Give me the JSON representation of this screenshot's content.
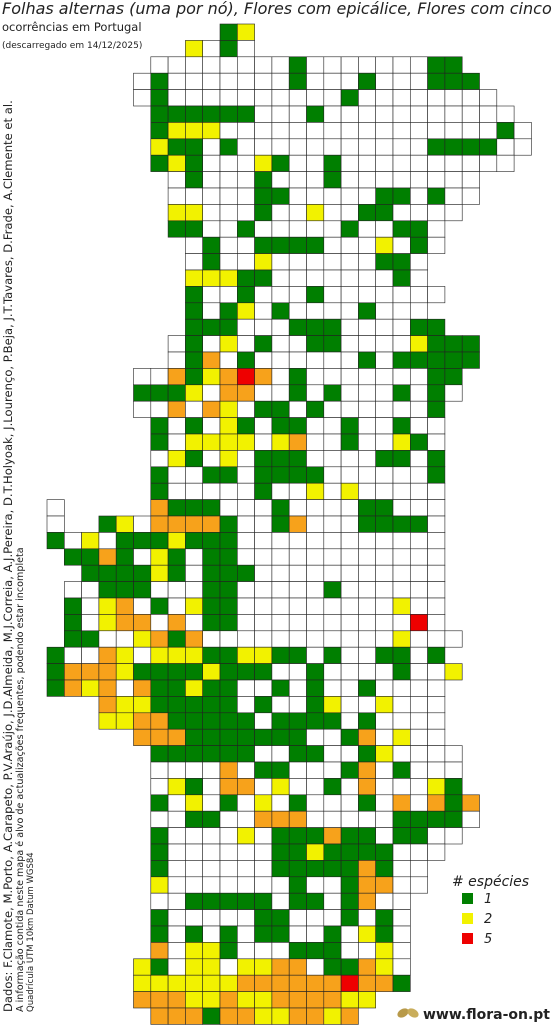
{
  "header": {
    "title": "Folhas alternas (uma por nó), Flores com epicálice, Flores com cinco p",
    "subtitle": "ocorrências em Portugal",
    "downloaded": "(descarregado em 14/12/2025)"
  },
  "side_notes": {
    "credits": "Dados: F.Clamote, M.Porto, A.Carapeto, P.V.Araújo, J.D.Almeida, M.J.Correia, A.J.Pereira, D.T.Holyoak, J.Lourenço, P.Beja, J.T.Tavares, D.Frade, A.Clemente et al.",
    "disclaimer": "A informação contida neste mapa é alvo de actualizações frequentes, podendo estar incompleta",
    "grid_info": "Quadrícula UTM 10km Datum WGS84"
  },
  "legend": {
    "title": "# espécies",
    "items": [
      {
        "value": 1,
        "color": "#007f00"
      },
      {
        "value": 2,
        "color": "#f2f200"
      },
      {
        "value": 5,
        "color": "#ee0000"
      }
    ]
  },
  "unlisted_classes": [
    {
      "value": 3,
      "color": "#f7a21b"
    }
  ],
  "logo": {
    "text": "www.flora-on.pt"
  },
  "grid": {
    "rows": [
      [
        null,
        null,
        null,
        null,
        null,
        null,
        null,
        null,
        null,
        null,
        1,
        2
      ],
      [
        null,
        null,
        null,
        null,
        null,
        null,
        null,
        null,
        2,
        0,
        1,
        0
      ],
      [
        null,
        null,
        null,
        null,
        null,
        null,
        0,
        0,
        0,
        0,
        0,
        0,
        0,
        0,
        1,
        0,
        0,
        0,
        0,
        0,
        0,
        0,
        1,
        1
      ],
      [
        null,
        null,
        null,
        null,
        null,
        0,
        1,
        0,
        0,
        0,
        0,
        0,
        0,
        0,
        1,
        0,
        0,
        0,
        1,
        0,
        0,
        0,
        1,
        1,
        1
      ],
      [
        null,
        null,
        null,
        null,
        null,
        0,
        1,
        0,
        0,
        0,
        0,
        0,
        0,
        0,
        0,
        0,
        0,
        1,
        0,
        0,
        0,
        0,
        0,
        0,
        0,
        0
      ],
      [
        null,
        null,
        null,
        null,
        null,
        null,
        1,
        1,
        1,
        1,
        1,
        1,
        0,
        0,
        0,
        1,
        0,
        0,
        0,
        0,
        0,
        0,
        0,
        0,
        0,
        0,
        0
      ],
      [
        null,
        null,
        null,
        null,
        null,
        null,
        1,
        2,
        2,
        2,
        0,
        0,
        0,
        0,
        0,
        0,
        0,
        0,
        0,
        0,
        0,
        0,
        0,
        0,
        0,
        0,
        1,
        0
      ],
      [
        null,
        null,
        null,
        null,
        null,
        null,
        2,
        1,
        1,
        0,
        1,
        0,
        0,
        0,
        0,
        0,
        0,
        0,
        0,
        0,
        0,
        0,
        1,
        1,
        1,
        1,
        0,
        0
      ],
      [
        null,
        null,
        null,
        null,
        null,
        null,
        1,
        2,
        1,
        0,
        0,
        0,
        2,
        1,
        0,
        0,
        1,
        0,
        0,
        0,
        0,
        0,
        0,
        0,
        0,
        0,
        0
      ],
      [
        null,
        null,
        null,
        null,
        null,
        null,
        null,
        0,
        1,
        0,
        0,
        0,
        1,
        0,
        0,
        0,
        1,
        0,
        0,
        0,
        0,
        0,
        0,
        0,
        0
      ],
      [
        null,
        null,
        null,
        null,
        null,
        null,
        null,
        0,
        0,
        0,
        0,
        0,
        1,
        1,
        0,
        0,
        0,
        0,
        0,
        1,
        1,
        0,
        1,
        0,
        0
      ],
      [
        null,
        null,
        null,
        null,
        null,
        null,
        null,
        2,
        2,
        0,
        0,
        0,
        1,
        0,
        0,
        2,
        0,
        0,
        1,
        1,
        0,
        0,
        0,
        0
      ],
      [
        null,
        null,
        null,
        null,
        null,
        null,
        null,
        1,
        1,
        0,
        0,
        1,
        0,
        0,
        0,
        0,
        0,
        1,
        0,
        0,
        1,
        1,
        0
      ],
      [
        null,
        null,
        null,
        null,
        null,
        null,
        null,
        null,
        0,
        1,
        0,
        0,
        1,
        1,
        1,
        1,
        0,
        0,
        0,
        2,
        0,
        1,
        0
      ],
      [
        null,
        null,
        null,
        null,
        null,
        null,
        null,
        null,
        0,
        1,
        0,
        0,
        2,
        0,
        0,
        0,
        0,
        0,
        0,
        1,
        1,
        0
      ],
      [
        null,
        null,
        null,
        null,
        null,
        null,
        null,
        null,
        2,
        2,
        2,
        1,
        1,
        0,
        0,
        0,
        0,
        0,
        0,
        0,
        1,
        0
      ],
      [
        null,
        null,
        null,
        null,
        null,
        null,
        null,
        null,
        1,
        0,
        0,
        1,
        0,
        0,
        0,
        1,
        0,
        0,
        0,
        0,
        0,
        0,
        0
      ],
      [
        null,
        null,
        null,
        null,
        null,
        null,
        null,
        null,
        1,
        0,
        1,
        2,
        0,
        1,
        0,
        0,
        0,
        0,
        1,
        0,
        0,
        0
      ],
      [
        null,
        null,
        null,
        null,
        null,
        null,
        null,
        null,
        1,
        1,
        1,
        0,
        0,
        0,
        1,
        1,
        1,
        0,
        0,
        0,
        0,
        1,
        1
      ],
      [
        null,
        null,
        null,
        null,
        null,
        null,
        null,
        0,
        1,
        0,
        2,
        0,
        1,
        0,
        0,
        1,
        1,
        0,
        0,
        0,
        0,
        2,
        1,
        1,
        1
      ],
      [
        null,
        null,
        null,
        null,
        null,
        null,
        null,
        0,
        1,
        3,
        0,
        1,
        0,
        0,
        0,
        0,
        0,
        0,
        1,
        0,
        1,
        1,
        1,
        1,
        1
      ],
      [
        null,
        null,
        null,
        null,
        null,
        0,
        0,
        3,
        1,
        2,
        3,
        5,
        3,
        0,
        1,
        0,
        0,
        0,
        0,
        0,
        0,
        0,
        1,
        1
      ],
      [
        null,
        null,
        null,
        null,
        null,
        1,
        1,
        1,
        2,
        0,
        3,
        3,
        0,
        0,
        1,
        0,
        1,
        0,
        0,
        0,
        1,
        0,
        1,
        0
      ],
      [
        null,
        null,
        null,
        null,
        null,
        0,
        0,
        3,
        0,
        3,
        2,
        0,
        1,
        1,
        0,
        1,
        0,
        0,
        0,
        0,
        0,
        0,
        1
      ],
      [
        null,
        null,
        null,
        null,
        null,
        null,
        1,
        0,
        1,
        0,
        2,
        1,
        0,
        1,
        1,
        0,
        0,
        1,
        0,
        0,
        1,
        0,
        0
      ],
      [
        null,
        null,
        null,
        null,
        null,
        null,
        1,
        0,
        2,
        2,
        2,
        2,
        0,
        2,
        3,
        0,
        0,
        1,
        0,
        0,
        2,
        1,
        0
      ],
      [
        null,
        null,
        null,
        null,
        null,
        null,
        0,
        2,
        1,
        0,
        2,
        0,
        1,
        1,
        1,
        0,
        0,
        0,
        0,
        1,
        1,
        0,
        1
      ],
      [
        null,
        null,
        null,
        null,
        null,
        null,
        1,
        0,
        0,
        1,
        1,
        0,
        1,
        1,
        1,
        1,
        0,
        0,
        0,
        0,
        0,
        0,
        1
      ],
      [
        null,
        null,
        null,
        null,
        null,
        null,
        1,
        0,
        0,
        0,
        0,
        0,
        1,
        0,
        0,
        2,
        0,
        2,
        0,
        0,
        0,
        0,
        0
      ],
      [
        0,
        null,
        null,
        null,
        null,
        null,
        3,
        1,
        1,
        1,
        0,
        0,
        0,
        1,
        0,
        0,
        0,
        0,
        1,
        1,
        0,
        0,
        0
      ],
      [
        0,
        null,
        null,
        1,
        2,
        0,
        3,
        3,
        3,
        3,
        1,
        0,
        0,
        1,
        3,
        0,
        0,
        0,
        1,
        1,
        1,
        1,
        0
      ],
      [
        1,
        0,
        2,
        0,
        1,
        1,
        1,
        2,
        1,
        1,
        1,
        0,
        0,
        0,
        0,
        0,
        0,
        0,
        0,
        0,
        0,
        0,
        0
      ],
      [
        null,
        1,
        1,
        3,
        1,
        0,
        2,
        1,
        0,
        1,
        1,
        0,
        0,
        0,
        0,
        0,
        0,
        0,
        0,
        0,
        0,
        0,
        0
      ],
      [
        null,
        null,
        1,
        1,
        1,
        1,
        2,
        1,
        0,
        1,
        1,
        1,
        0,
        0,
        0,
        0,
        0,
        0,
        0,
        0,
        0,
        0,
        0
      ],
      [
        null,
        0,
        0,
        1,
        1,
        1,
        0,
        0,
        0,
        1,
        1,
        0,
        0,
        0,
        0,
        0,
        1,
        0,
        0,
        0,
        0,
        0,
        0
      ],
      [
        null,
        1,
        0,
        2,
        3,
        0,
        1,
        0,
        2,
        1,
        1,
        0,
        0,
        0,
        0,
        0,
        0,
        0,
        0,
        0,
        2,
        0,
        0
      ],
      [
        null,
        1,
        0,
        2,
        3,
        3,
        0,
        3,
        0,
        1,
        1,
        0,
        0,
        0,
        0,
        0,
        0,
        0,
        0,
        0,
        0,
        5,
        0
      ],
      [
        null,
        1,
        1,
        0,
        0,
        2,
        3,
        1,
        3,
        0,
        0,
        0,
        0,
        0,
        0,
        0,
        0,
        0,
        0,
        0,
        2,
        0,
        0,
        0
      ],
      [
        1,
        0,
        0,
        3,
        2,
        0,
        2,
        2,
        2,
        1,
        1,
        2,
        2,
        1,
        1,
        0,
        1,
        0,
        0,
        1,
        1,
        0,
        1
      ],
      [
        1,
        3,
        3,
        3,
        2,
        1,
        1,
        1,
        1,
        2,
        1,
        1,
        1,
        0,
        0,
        1,
        0,
        0,
        0,
        0,
        1,
        0,
        0,
        2
      ],
      [
        1,
        3,
        2,
        3,
        0,
        3,
        1,
        1,
        2,
        1,
        1,
        0,
        0,
        1,
        0,
        1,
        0,
        0,
        1,
        0,
        0,
        0,
        0
      ],
      [
        null,
        null,
        null,
        3,
        2,
        2,
        1,
        1,
        1,
        1,
        1,
        0,
        1,
        0,
        0,
        1,
        2,
        0,
        0,
        2,
        0,
        0,
        0
      ],
      [
        null,
        null,
        null,
        2,
        2,
        3,
        3,
        1,
        1,
        1,
        1,
        1,
        0,
        1,
        1,
        1,
        1,
        0,
        1,
        0,
        0,
        0,
        0
      ],
      [
        null,
        null,
        null,
        null,
        null,
        3,
        3,
        3,
        1,
        1,
        1,
        1,
        1,
        1,
        1,
        0,
        0,
        1,
        3,
        0,
        2,
        0,
        0
      ],
      [
        null,
        null,
        null,
        null,
        null,
        null,
        1,
        1,
        1,
        1,
        1,
        1,
        0,
        0,
        1,
        1,
        0,
        0,
        1,
        2,
        0,
        0,
        0,
        0
      ],
      [
        null,
        null,
        null,
        null,
        null,
        null,
        0,
        0,
        0,
        0,
        3,
        0,
        1,
        1,
        0,
        0,
        0,
        1,
        3,
        0,
        1,
        0,
        0,
        0
      ],
      [
        null,
        null,
        null,
        null,
        null,
        null,
        0,
        2,
        1,
        0,
        3,
        3,
        0,
        2,
        0,
        0,
        1,
        0,
        3,
        0,
        0,
        0,
        2,
        1
      ],
      [
        null,
        null,
        null,
        null,
        null,
        null,
        1,
        0,
        2,
        0,
        1,
        0,
        2,
        0,
        1,
        0,
        0,
        0,
        1,
        0,
        3,
        0,
        3,
        1,
        3
      ],
      [
        null,
        null,
        null,
        null,
        null,
        null,
        0,
        0,
        1,
        1,
        0,
        0,
        3,
        3,
        3,
        0,
        0,
        0,
        0,
        0,
        1,
        1,
        1,
        1,
        0
      ],
      [
        null,
        null,
        null,
        null,
        null,
        null,
        1,
        0,
        0,
        0,
        0,
        2,
        0,
        1,
        1,
        1,
        3,
        1,
        1,
        0,
        1,
        1,
        0,
        0
      ],
      [
        null,
        null,
        null,
        null,
        null,
        null,
        1,
        0,
        0,
        0,
        0,
        0,
        0,
        1,
        1,
        2,
        1,
        1,
        1,
        1,
        0,
        0,
        0
      ],
      [
        null,
        null,
        null,
        null,
        null,
        null,
        1,
        0,
        0,
        0,
        0,
        0,
        0,
        1,
        1,
        1,
        1,
        1,
        3,
        1,
        0,
        0
      ],
      [
        null,
        null,
        null,
        null,
        null,
        null,
        2,
        0,
        0,
        0,
        0,
        0,
        0,
        0,
        1,
        0,
        0,
        1,
        3,
        3,
        0,
        0
      ],
      [
        null,
        null,
        null,
        null,
        null,
        null,
        0,
        0,
        1,
        1,
        1,
        1,
        1,
        0,
        1,
        1,
        0,
        1,
        3,
        0,
        0
      ],
      [
        null,
        null,
        null,
        null,
        null,
        null,
        1,
        0,
        0,
        0,
        0,
        0,
        1,
        1,
        0,
        0,
        0,
        1,
        0,
        1,
        0
      ],
      [
        null,
        null,
        null,
        null,
        null,
        null,
        1,
        0,
        1,
        0,
        1,
        0,
        1,
        1,
        0,
        0,
        1,
        0,
        2,
        1,
        0
      ],
      [
        null,
        null,
        null,
        null,
        null,
        null,
        3,
        0,
        2,
        2,
        1,
        0,
        0,
        0,
        1,
        1,
        1,
        0,
        0,
        2,
        0
      ],
      [
        null,
        null,
        null,
        null,
        null,
        2,
        1,
        0,
        2,
        2,
        0,
        2,
        2,
        3,
        3,
        0,
        1,
        1,
        3,
        2,
        0
      ],
      [
        null,
        null,
        null,
        null,
        null,
        2,
        2,
        2,
        2,
        2,
        2,
        3,
        3,
        3,
        3,
        3,
        3,
        5,
        3,
        3,
        1
      ],
      [
        null,
        null,
        null,
        null,
        null,
        3,
        3,
        3,
        2,
        2,
        3,
        2,
        2,
        3,
        3,
        3,
        3,
        2,
        2
      ],
      [
        null,
        null,
        null,
        null,
        null,
        null,
        3,
        3,
        3,
        1,
        3,
        3,
        2,
        2,
        3,
        3,
        2,
        3
      ]
    ]
  }
}
